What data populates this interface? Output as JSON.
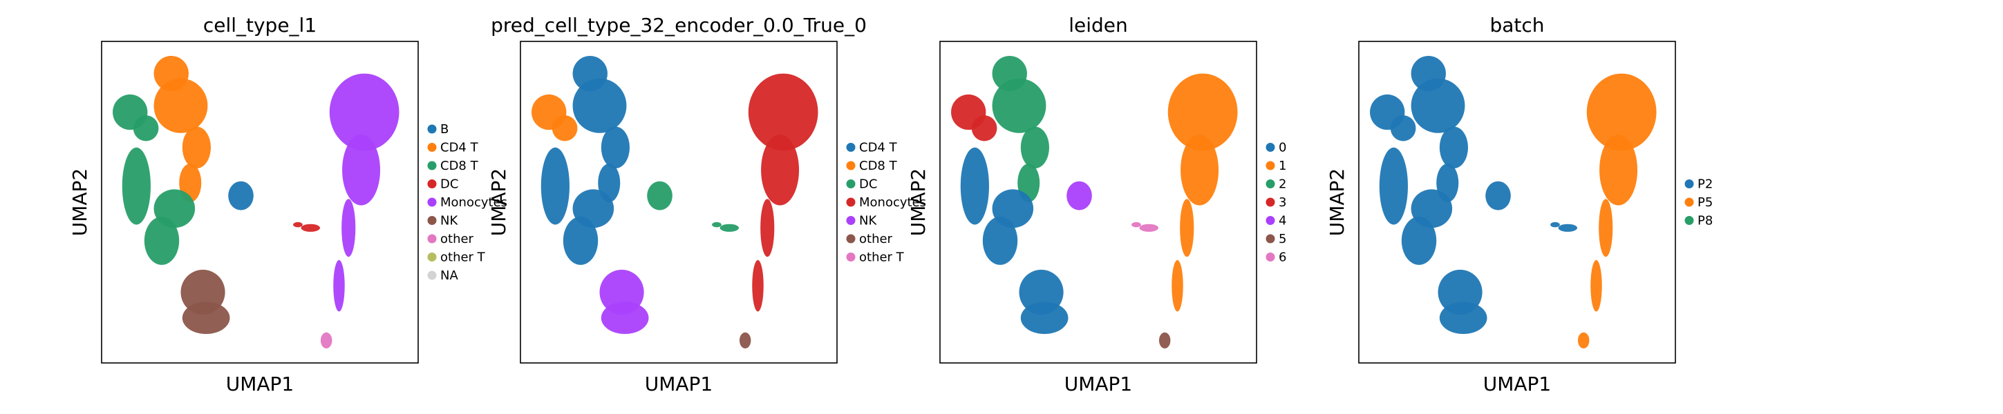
{
  "chart_data": [
    {
      "type": "scatter",
      "title": "cell_type_l1",
      "xlabel": "UMAP1",
      "ylabel": "UMAP2",
      "grid": false,
      "legend_position": "right",
      "categories": [
        {
          "name": "B",
          "color": "#1f77b4"
        },
        {
          "name": "CD4 T",
          "color": "#ff7f0e"
        },
        {
          "name": "CD8 T",
          "color": "#279e68"
        },
        {
          "name": "DC",
          "color": "#d62728"
        },
        {
          "name": "Monocytes",
          "color": "#aa40fc"
        },
        {
          "name": "NK",
          "color": "#8c564b"
        },
        {
          "name": "other",
          "color": "#e377c2"
        },
        {
          "name": "other T",
          "color": "#b5bd61"
        },
        {
          "name": "NA",
          "color": "#d3d3d3"
        }
      ],
      "clusters": [
        {
          "region": "left-blob-top",
          "category": "CD4 T"
        },
        {
          "region": "left-blob-topleft",
          "category": "CD8 T"
        },
        {
          "region": "left-blob-middle",
          "category": "CD8 T"
        },
        {
          "region": "left-blob-bottom",
          "category": "NK"
        },
        {
          "region": "center-small-blob",
          "category": "B"
        },
        {
          "region": "center-streak",
          "category": "DC"
        },
        {
          "region": "right-large-blob",
          "category": "Monocytes"
        },
        {
          "region": "bottom-small-blob",
          "category": "other"
        }
      ]
    },
    {
      "type": "scatter",
      "title": "pred_cell_type_32_encoder_0.0_True_0",
      "xlabel": "UMAP1",
      "ylabel": "UMAP2",
      "grid": false,
      "legend_position": "right",
      "categories": [
        {
          "name": "CD4 T",
          "color": "#1f77b4"
        },
        {
          "name": "CD8 T",
          "color": "#ff7f0e"
        },
        {
          "name": "DC",
          "color": "#279e68"
        },
        {
          "name": "Monocytes",
          "color": "#d62728"
        },
        {
          "name": "NK",
          "color": "#aa40fc"
        },
        {
          "name": "other",
          "color": "#8c564b"
        },
        {
          "name": "other T",
          "color": "#e377c2"
        }
      ],
      "clusters": [
        {
          "region": "left-blob-top",
          "category": "CD4 T"
        },
        {
          "region": "left-blob-topleft",
          "category": "CD8 T"
        },
        {
          "region": "left-blob-middle",
          "category": "CD4 T"
        },
        {
          "region": "left-blob-bottom",
          "category": "NK"
        },
        {
          "region": "center-small-blob",
          "category": "DC"
        },
        {
          "region": "center-streak",
          "category": "DC"
        },
        {
          "region": "right-large-blob",
          "category": "Monocytes"
        },
        {
          "region": "bottom-small-blob",
          "category": "other"
        }
      ]
    },
    {
      "type": "scatter",
      "title": "leiden",
      "xlabel": "UMAP1",
      "ylabel": "UMAP2",
      "grid": false,
      "legend_position": "right",
      "categories": [
        {
          "name": "0",
          "color": "#1f77b4"
        },
        {
          "name": "1",
          "color": "#ff7f0e"
        },
        {
          "name": "2",
          "color": "#279e68"
        },
        {
          "name": "3",
          "color": "#d62728"
        },
        {
          "name": "4",
          "color": "#aa40fc"
        },
        {
          "name": "5",
          "color": "#8c564b"
        },
        {
          "name": "6",
          "color": "#e377c2"
        }
      ],
      "clusters": [
        {
          "region": "left-blob-top",
          "category": "2"
        },
        {
          "region": "left-blob-topleft",
          "category": "3"
        },
        {
          "region": "left-blob-middle",
          "category": "0"
        },
        {
          "region": "left-blob-bottom",
          "category": "0"
        },
        {
          "region": "center-small-blob",
          "category": "4"
        },
        {
          "region": "center-streak",
          "category": "6"
        },
        {
          "region": "right-large-blob",
          "category": "1"
        },
        {
          "region": "bottom-small-blob",
          "category": "5"
        }
      ]
    },
    {
      "type": "scatter",
      "title": "batch",
      "xlabel": "UMAP1",
      "ylabel": "UMAP2",
      "grid": false,
      "legend_position": "right",
      "categories": [
        {
          "name": "P2",
          "color": "#1f77b4"
        },
        {
          "name": "P5",
          "color": "#ff7f0e"
        },
        {
          "name": "P8",
          "color": "#279e68"
        }
      ],
      "clusters": [
        {
          "region": "left-blob-top",
          "category": "P2"
        },
        {
          "region": "left-blob-topleft",
          "category": "P2"
        },
        {
          "region": "left-blob-middle",
          "category": "P2"
        },
        {
          "region": "left-blob-bottom",
          "category": "P2"
        },
        {
          "region": "center-small-blob",
          "category": "P2"
        },
        {
          "region": "center-streak",
          "category": "P2"
        },
        {
          "region": "right-large-blob",
          "category": "P5"
        },
        {
          "region": "bottom-small-blob",
          "category": "P5"
        }
      ]
    }
  ]
}
